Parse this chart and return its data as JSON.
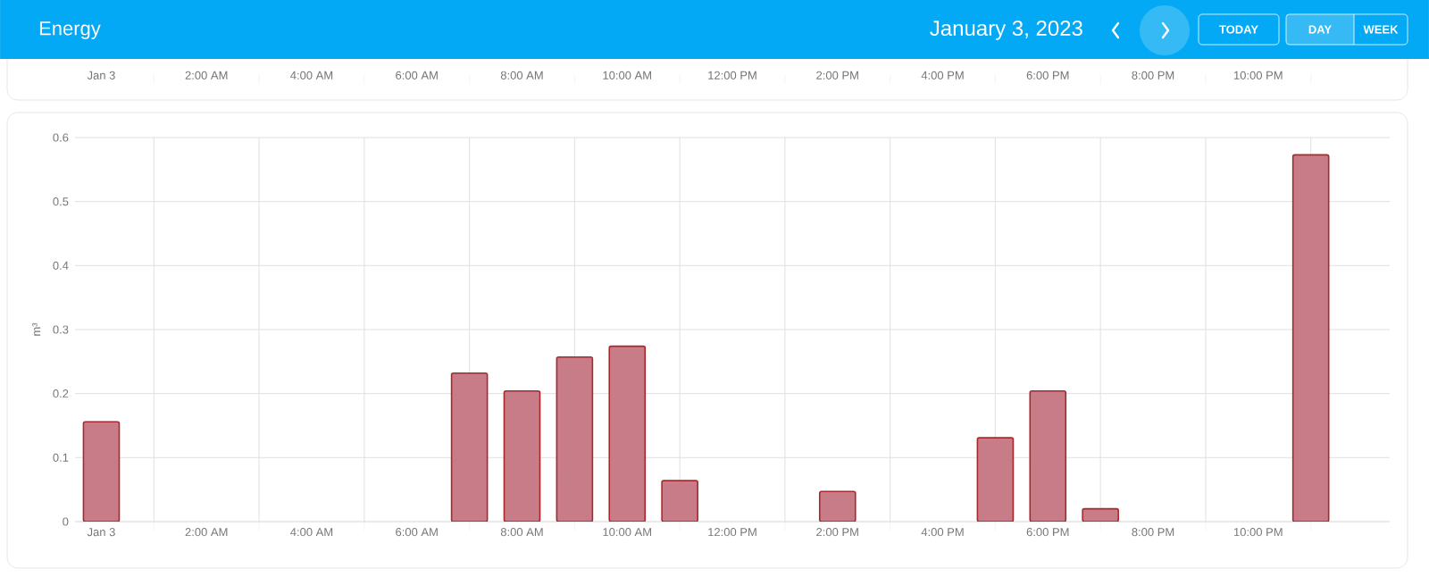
{
  "chart_data": [
    {
      "type": "other",
      "title": "Energy",
      "subtitle": "January 3, 2023",
      "annotations": [
        "TODAY",
        "DAY",
        "WEEK"
      ]
    },
    {
      "type": "bar",
      "ylabel": "m³",
      "x": [
        0,
        1,
        2,
        3,
        4,
        5,
        6,
        7,
        8,
        9,
        10,
        11,
        12,
        13,
        14,
        15,
        16,
        17,
        18,
        19,
        20,
        21,
        22,
        23
      ],
      "values": [
        0.156,
        null,
        null,
        null,
        null,
        null,
        null,
        0.232,
        0.204,
        0.257,
        0.274,
        0.064,
        null,
        null,
        0.047,
        null,
        null,
        0.131,
        0.204,
        0.02,
        null,
        null,
        null,
        0.573
      ],
      "color": "#c77c88",
      "xlim": [
        -0.5,
        24.5
      ],
      "ylim": [
        0,
        0.6
      ],
      "yticks": [
        0,
        0.1,
        0.2,
        0.3,
        0.4,
        0.5,
        0.6
      ],
      "xticks": [
        {
          "value": 0,
          "label": "Jan 3"
        },
        {
          "value": 1,
          "label": null
        },
        {
          "value": 2,
          "label": "2:00 AM"
        },
        {
          "value": 3,
          "label": null
        },
        {
          "value": 4,
          "label": "4:00 AM"
        },
        {
          "value": 5,
          "label": null
        },
        {
          "value": 6,
          "label": "6:00 AM"
        },
        {
          "value": 7,
          "label": null
        },
        {
          "value": 8,
          "label": "8:00 AM"
        },
        {
          "value": 9,
          "label": null
        },
        {
          "value": 10,
          "label": "10:00 AM"
        },
        {
          "value": 11,
          "label": null
        },
        {
          "value": 12,
          "label": "12:00 PM"
        },
        {
          "value": 13,
          "label": null
        },
        {
          "value": 14,
          "label": "2:00 PM"
        },
        {
          "value": 15,
          "label": null
        },
        {
          "value": 16,
          "label": "4:00 PM"
        },
        {
          "value": 17,
          "label": null
        },
        {
          "value": 18,
          "label": "6:00 PM"
        },
        {
          "value": 19,
          "label": null
        },
        {
          "value": 20,
          "label": "8:00 PM"
        },
        {
          "value": 21,
          "label": null
        },
        {
          "value": 22,
          "label": "10:00 PM"
        },
        {
          "value": 23,
          "label": null
        }
      ],
      "x2lim": [
        -0.5,
        24.5
      ],
      "x2ticks": [
        {
          "value": 0,
          "label": "Jan 3"
        },
        {
          "value": 1,
          "label": null
        },
        {
          "value": 2,
          "label": "2:00 AM"
        },
        {
          "value": 3,
          "label": null
        },
        {
          "value": 4,
          "label": "4:00 AM"
        },
        {
          "value": 5,
          "label": null
        },
        {
          "value": 6,
          "label": "6:00 AM"
        },
        {
          "value": 7,
          "label": null
        },
        {
          "value": 8,
          "label": "8:00 AM"
        },
        {
          "value": 9,
          "label": null
        },
        {
          "value": 10,
          "label": "10:00 AM"
        },
        {
          "value": 11,
          "label": null
        },
        {
          "value": 12,
          "label": "12:00 PM"
        },
        {
          "value": 13,
          "label": null
        },
        {
          "value": 14,
          "label": "2:00 PM"
        },
        {
          "value": 15,
          "label": null
        },
        {
          "value": 16,
          "label": "4:00 PM"
        },
        {
          "value": 17,
          "label": null
        },
        {
          "value": 18,
          "label": "6:00 PM"
        },
        {
          "value": 19,
          "label": null
        },
        {
          "value": 20,
          "label": "8:00 PM"
        },
        {
          "value": 21,
          "label": null
        },
        {
          "value": 22,
          "label": "10:00 PM"
        },
        {
          "value": 23,
          "label": null
        }
      ],
      "grid": true
    }
  ]
}
